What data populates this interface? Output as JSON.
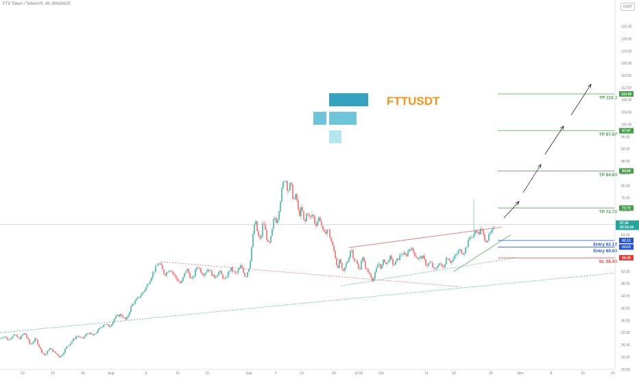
{
  "header": "FTX Token / TetherUS, 4h, BINANCE",
  "unit_button": "USDT",
  "logo_text": "FTTUSDT",
  "colors": {
    "up": "#26a69a",
    "down": "#ef5350",
    "tp": "#43a047",
    "entry": "#1e4fd8",
    "sl": "#e53935",
    "logo_dark": "#35a1bd",
    "logo_mid": "#6ec5da",
    "logo_light": "#b3e6ef",
    "logo_text": "#f7931a"
  },
  "chart_data": {
    "type": "candlestick",
    "symbol": "FTTUSDT",
    "timeframe": "4h",
    "exchange": "BINANCE",
    "ylim": [
      20,
      140
    ],
    "y_ticks": [
      20,
      24,
      28,
      32,
      36,
      40,
      44,
      48,
      52,
      56,
      60,
      64,
      68,
      72,
      76,
      80,
      84,
      88,
      92,
      96,
      100,
      104,
      108,
      112,
      116,
      120,
      124,
      128,
      132
    ],
    "x_ticks": [
      "12",
      "19",
      "26",
      "Aug",
      "9",
      "16",
      "23",
      "Sep",
      "7",
      "13",
      "20",
      "12:00",
      "Oct",
      "11",
      "18",
      "25",
      "Nov",
      "8",
      "15",
      "22"
    ],
    "last_price": "67.34",
    "countdown": "03:10:34",
    "levels": [
      {
        "label": "TP 110.0",
        "value": 110.0,
        "badge": "110.00",
        "kind": "tp"
      },
      {
        "label": "TP 97.97",
        "value": 97.97,
        "badge": "97.97",
        "kind": "tp"
      },
      {
        "label": "TP 84.84",
        "value": 84.84,
        "badge": "84.84",
        "kind": "tp"
      },
      {
        "label": "TP 72.72",
        "value": 72.72,
        "badge": "72.72",
        "kind": "tp"
      },
      {
        "label": "Entry 62.12",
        "value": 62.12,
        "badge": "62.12",
        "kind": "entry"
      },
      {
        "label": "Entry 60.00",
        "value": 60.0,
        "badge": "60.00",
        "kind": "entry"
      },
      {
        "label": "SL 56.46",
        "value": 56.46,
        "badge": "56.46",
        "kind": "sl"
      }
    ],
    "price_path": [
      [
        0,
        30
      ],
      [
        6,
        31
      ],
      [
        12,
        29.5
      ],
      [
        20,
        31.5
      ],
      [
        28,
        30
      ],
      [
        36,
        32
      ],
      [
        44,
        28
      ],
      [
        52,
        30
      ],
      [
        60,
        26
      ],
      [
        66,
        24.5
      ],
      [
        72,
        27
      ],
      [
        80,
        25.5
      ],
      [
        88,
        24
      ],
      [
        96,
        27
      ],
      [
        104,
        29
      ],
      [
        112,
        31
      ],
      [
        120,
        30
      ],
      [
        128,
        32
      ],
      [
        136,
        31
      ],
      [
        144,
        33
      ],
      [
        152,
        35
      ],
      [
        160,
        34
      ],
      [
        168,
        37
      ],
      [
        176,
        38
      ],
      [
        184,
        36
      ],
      [
        192,
        41
      ],
      [
        200,
        43
      ],
      [
        208,
        45
      ],
      [
        216,
        48
      ],
      [
        224,
        52
      ],
      [
        232,
        55
      ],
      [
        240,
        51
      ],
      [
        248,
        53
      ],
      [
        256,
        50
      ],
      [
        264,
        48
      ],
      [
        272,
        53
      ],
      [
        280,
        49
      ],
      [
        288,
        54
      ],
      [
        296,
        51
      ],
      [
        304,
        53
      ],
      [
        312,
        50
      ],
      [
        320,
        52
      ],
      [
        328,
        49
      ],
      [
        336,
        53
      ],
      [
        344,
        51
      ],
      [
        352,
        54
      ],
      [
        358,
        50
      ],
      [
        364,
        54
      ],
      [
        368,
        62
      ],
      [
        372,
        69
      ],
      [
        376,
        64
      ],
      [
        380,
        62
      ],
      [
        384,
        69
      ],
      [
        388,
        64
      ],
      [
        392,
        60
      ],
      [
        396,
        64
      ],
      [
        400,
        70
      ],
      [
        404,
        68
      ],
      [
        408,
        74
      ],
      [
        412,
        80
      ],
      [
        416,
        83
      ],
      [
        420,
        78
      ],
      [
        424,
        81
      ],
      [
        428,
        75
      ],
      [
        432,
        77
      ],
      [
        436,
        70
      ],
      [
        440,
        73
      ],
      [
        444,
        67
      ],
      [
        448,
        72
      ],
      [
        452,
        69
      ],
      [
        456,
        71
      ],
      [
        460,
        67
      ],
      [
        466,
        70
      ],
      [
        472,
        64
      ],
      [
        478,
        66
      ],
      [
        484,
        61
      ],
      [
        488,
        58
      ],
      [
        492,
        53
      ],
      [
        496,
        56
      ],
      [
        500,
        51
      ],
      [
        504,
        54
      ],
      [
        508,
        56
      ],
      [
        512,
        60
      ],
      [
        516,
        56
      ],
      [
        520,
        55
      ],
      [
        524,
        52
      ],
      [
        528,
        57
      ],
      [
        532,
        54
      ],
      [
        536,
        52
      ],
      [
        540,
        51
      ],
      [
        544,
        49
      ],
      [
        548,
        52
      ],
      [
        552,
        55
      ],
      [
        556,
        53
      ],
      [
        560,
        56
      ],
      [
        564,
        54
      ],
      [
        568,
        57
      ],
      [
        574,
        54
      ],
      [
        580,
        56
      ],
      [
        586,
        58
      ],
      [
        592,
        57
      ],
      [
        598,
        60
      ],
      [
        604,
        58
      ],
      [
        610,
        56
      ],
      [
        616,
        57
      ],
      [
        622,
        54
      ],
      [
        628,
        55
      ],
      [
        634,
        52
      ],
      [
        640,
        55
      ],
      [
        646,
        53
      ],
      [
        652,
        57
      ],
      [
        658,
        55
      ],
      [
        664,
        57
      ],
      [
        670,
        59
      ],
      [
        676,
        58
      ],
      [
        682,
        61
      ],
      [
        686,
        64
      ],
      [
        690,
        63
      ],
      [
        694,
        66
      ],
      [
        698,
        64
      ],
      [
        702,
        66
      ],
      [
        706,
        63
      ],
      [
        710,
        62
      ],
      [
        714,
        64
      ],
      [
        718,
        65
      ],
      [
        722,
        67.3
      ]
    ]
  }
}
